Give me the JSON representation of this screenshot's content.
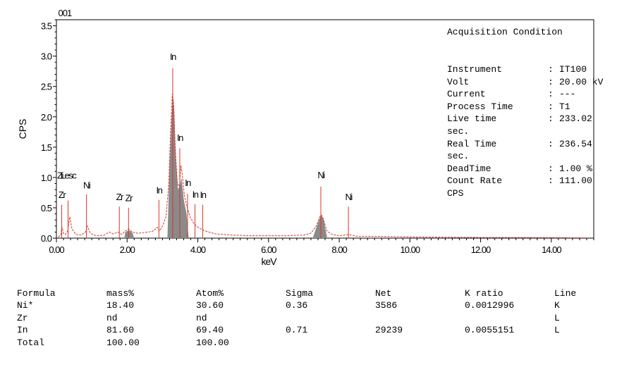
{
  "chart_data": {
    "type": "line",
    "title": "001",
    "xlabel": "keV",
    "ylabel": "CPS",
    "xlim": [
      0,
      15.2
    ],
    "ylim": [
      0,
      3.6
    ],
    "x_ticks": [
      "0.00",
      "2.00",
      "4.00",
      "6.00",
      "8.00",
      "10.00",
      "12.00",
      "14.00"
    ],
    "y_ticks": [
      "0.0",
      "0.5",
      "1.0",
      "1.5",
      "2.0",
      "2.5",
      "3.0",
      "3.5"
    ],
    "y_tick_values": [
      0,
      0.5,
      1.0,
      1.5,
      2.0,
      2.5,
      3.0,
      3.5
    ],
    "x_tick_values": [
      0,
      2,
      4,
      6,
      8,
      10,
      12,
      14
    ],
    "colors": {
      "spectrum": "#d9342b",
      "filled": "#8a8a8a",
      "axis": "#000000"
    },
    "spectrum": [
      [
        0.05,
        0.02
      ],
      [
        0.12,
        0.05
      ],
      [
        0.16,
        0.18
      ],
      [
        0.2,
        0.08
      ],
      [
        0.26,
        0.06
      ],
      [
        0.32,
        0.12
      ],
      [
        0.38,
        0.35
      ],
      [
        0.44,
        0.15
      ],
      [
        0.55,
        0.06
      ],
      [
        0.7,
        0.05
      ],
      [
        0.82,
        0.1
      ],
      [
        0.88,
        0.2
      ],
      [
        0.94,
        0.1
      ],
      [
        1.05,
        0.05
      ],
      [
        1.2,
        0.04
      ],
      [
        1.35,
        0.05
      ],
      [
        1.5,
        0.1
      ],
      [
        1.6,
        0.07
      ],
      [
        1.75,
        0.1
      ],
      [
        1.85,
        0.06
      ],
      [
        1.95,
        0.12
      ],
      [
        2.05,
        0.15
      ],
      [
        2.15,
        0.1
      ],
      [
        2.3,
        0.08
      ],
      [
        2.45,
        0.09
      ],
      [
        2.6,
        0.1
      ],
      [
        2.75,
        0.12
      ],
      [
        2.85,
        0.18
      ],
      [
        2.92,
        0.12
      ],
      [
        3.0,
        0.2
      ],
      [
        3.1,
        0.35
      ],
      [
        3.18,
        0.9
      ],
      [
        3.24,
        1.9
      ],
      [
        3.28,
        2.38
      ],
      [
        3.32,
        2.2
      ],
      [
        3.36,
        1.5
      ],
      [
        3.42,
        0.9
      ],
      [
        3.48,
        0.85
      ],
      [
        3.52,
        1.2
      ],
      [
        3.56,
        1.05
      ],
      [
        3.62,
        0.7
      ],
      [
        3.7,
        0.5
      ],
      [
        3.78,
        0.35
      ],
      [
        3.88,
        0.25
      ],
      [
        4.0,
        0.18
      ],
      [
        4.2,
        0.12
      ],
      [
        4.5,
        0.07
      ],
      [
        5.0,
        0.05
      ],
      [
        5.5,
        0.04
      ],
      [
        6.0,
        0.04
      ],
      [
        6.5,
        0.04
      ],
      [
        7.0,
        0.05
      ],
      [
        7.2,
        0.08
      ],
      [
        7.35,
        0.2
      ],
      [
        7.45,
        0.35
      ],
      [
        7.5,
        0.38
      ],
      [
        7.55,
        0.32
      ],
      [
        7.65,
        0.12
      ],
      [
        7.8,
        0.06
      ],
      [
        8.0,
        0.04
      ],
      [
        8.26,
        0.06
      ],
      [
        8.5,
        0.03
      ],
      [
        9.0,
        0.03
      ],
      [
        10.0,
        0.02
      ],
      [
        11.0,
        0.015
      ],
      [
        12.0,
        0.01
      ],
      [
        13.0,
        0.01
      ],
      [
        14.0,
        0.008
      ],
      [
        15.0,
        0.005
      ]
    ],
    "filled_regions": [
      [
        [
          1.92,
          0
        ],
        [
          1.95,
          0.1
        ],
        [
          2.05,
          0.13
        ],
        [
          2.15,
          0.09
        ],
        [
          2.2,
          0
        ]
      ],
      [
        [
          3.14,
          0
        ],
        [
          3.2,
          1.2
        ],
        [
          3.26,
          2.0
        ],
        [
          3.29,
          2.38
        ],
        [
          3.33,
          2.1
        ],
        [
          3.38,
          1.3
        ],
        [
          3.44,
          0.8
        ],
        [
          3.5,
          0.88
        ],
        [
          3.54,
          1.0
        ],
        [
          3.6,
          0.65
        ],
        [
          3.68,
          0.4
        ],
        [
          3.74,
          0
        ]
      ],
      [
        [
          7.25,
          0
        ],
        [
          7.35,
          0.17
        ],
        [
          7.45,
          0.33
        ],
        [
          7.5,
          0.37
        ],
        [
          7.56,
          0.3
        ],
        [
          7.66,
          0
        ]
      ]
    ],
    "peak_lines": [
      {
        "label": "Zr",
        "x": 0.15,
        "y": 0.55,
        "ly": 0.66
      },
      {
        "label": "Lesc",
        "x": 0.33,
        "y": 0.62,
        "ly": 0.98
      },
      {
        "label": "Ni",
        "x": 0.85,
        "y": 0.72,
        "ly": 0.82
      },
      {
        "label": "Zr",
        "x": 1.78,
        "y": 0.52,
        "ly": 0.63
      },
      {
        "label": "Zr",
        "x": 2.04,
        "y": 0.5,
        "ly": 0.61
      },
      {
        "label": "In",
        "x": 2.9,
        "y": 0.63,
        "ly": 0.74
      },
      {
        "label": "In",
        "x": 3.29,
        "y": 2.8,
        "ly": 2.94
      },
      {
        "label": "In",
        "x": 3.49,
        "y": 1.48,
        "ly": 1.6
      },
      {
        "label": "In",
        "x": 3.71,
        "y": 0.73,
        "ly": 0.86
      },
      {
        "label": "In",
        "x": 3.92,
        "y": 0.56,
        "ly": 0.67
      },
      {
        "label": "In",
        "x": 4.14,
        "y": 0.55,
        "ly": 0.66
      },
      {
        "label": "Ni",
        "x": 7.48,
        "y": 0.85,
        "ly": 0.99
      },
      {
        "label": "Ni",
        "x": 8.26,
        "y": 0.52,
        "ly": 0.63
      }
    ],
    "extra_label": {
      "text": "Zi",
      "x": 0.02,
      "ly": 0.98
    }
  },
  "acquisition": {
    "heading": "Acquisition Condition",
    "rows": [
      {
        "key": "Instrument",
        "value": "IT100"
      },
      {
        "key": "Volt",
        "value": "20.00 kV"
      },
      {
        "key": "Current",
        "value": "---"
      },
      {
        "key": "Process Time",
        "value": "T1"
      },
      {
        "key": "Live time",
        "value": "233.02"
      },
      {
        "key": "sec.",
        "value": ""
      },
      {
        "key": "Real Time",
        "value": "236.54"
      },
      {
        "key": "sec.",
        "value": ""
      },
      {
        "key": "DeadTime",
        "value": "1.00 %"
      },
      {
        "key": "Count Rate",
        "value": "111.00"
      },
      {
        "key": "CPS",
        "value": ""
      }
    ]
  },
  "results": {
    "headers": [
      "Formula",
      "mass%",
      "Atom%",
      "Sigma",
      "Net",
      "K ratio",
      "Line"
    ],
    "rows": [
      [
        "Ni*",
        "18.40",
        "30.60",
        "0.36",
        "3586",
        "0.0012996",
        "K"
      ],
      [
        "Zr",
        "nd",
        "nd",
        "",
        "",
        "",
        "L"
      ],
      [
        "In",
        "81.60",
        "69.40",
        "0.71",
        "29239",
        "0.0055151",
        "L"
      ],
      [
        "Total",
        "100.00",
        "100.00",
        "",
        "",
        "",
        ""
      ]
    ]
  }
}
